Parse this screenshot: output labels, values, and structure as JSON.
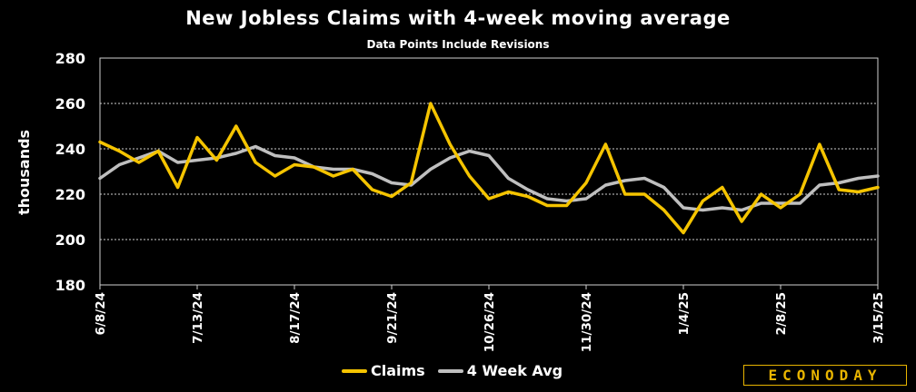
{
  "chart_data": {
    "type": "line",
    "title": "New Jobless Claims with 4-week moving average",
    "subtitle": "Data Points Include Revisions",
    "ylabel": "thousands",
    "ylim": [
      180,
      280
    ],
    "yticks": [
      180,
      200,
      220,
      240,
      260,
      280
    ],
    "grid": true,
    "legend_placement": "bottom",
    "x": [
      "6/8/24",
      "6/15/24",
      "6/22/24",
      "6/29/24",
      "7/6/24",
      "7/13/24",
      "7/20/24",
      "7/27/24",
      "8/3/24",
      "8/10/24",
      "8/17/24",
      "8/24/24",
      "8/31/24",
      "9/7/24",
      "9/14/24",
      "9/21/24",
      "9/28/24",
      "10/5/24",
      "10/12/24",
      "10/19/24",
      "10/26/24",
      "11/2/24",
      "11/9/24",
      "11/16/24",
      "11/23/24",
      "11/30/24",
      "12/7/24",
      "12/14/24",
      "12/21/24",
      "12/28/24",
      "1/4/25",
      "1/11/25",
      "1/18/25",
      "1/25/25",
      "2/1/25",
      "2/8/25",
      "2/15/25",
      "2/22/25",
      "3/1/25",
      "3/8/25",
      "3/15/25"
    ],
    "xtick_labels": [
      "6/8/24",
      "7/13/24",
      "8/17/24",
      "9/21/24",
      "10/26/24",
      "11/30/24",
      "1/4/25",
      "2/8/25",
      "3/15/25"
    ],
    "series": [
      {
        "name": "Claims",
        "color": "#f5c400",
        "values": [
          243,
          239,
          234,
          239,
          223,
          245,
          235,
          250,
          234,
          228,
          233,
          232,
          228,
          231,
          222,
          219,
          225,
          260,
          242,
          228,
          218,
          221,
          219,
          215,
          215,
          225,
          242,
          220,
          220,
          213,
          203,
          217,
          223,
          208,
          220,
          214,
          220,
          242,
          222,
          221,
          223
        ]
      },
      {
        "name": "4 Week Avg",
        "color": "#bfbfbf",
        "values": [
          227,
          233,
          236,
          239,
          234,
          235,
          236,
          238,
          241,
          237,
          236,
          232,
          231,
          231,
          229,
          225,
          224,
          231,
          236,
          239,
          237,
          227,
          222,
          218,
          217,
          218,
          224,
          226,
          227,
          223,
          214,
          213,
          214,
          213,
          216,
          216,
          216,
          224,
          225,
          227,
          228
        ]
      }
    ]
  },
  "legend": {
    "claims": "Claims",
    "avg": "4 Week Avg"
  },
  "logo_text": "ECONODAY"
}
